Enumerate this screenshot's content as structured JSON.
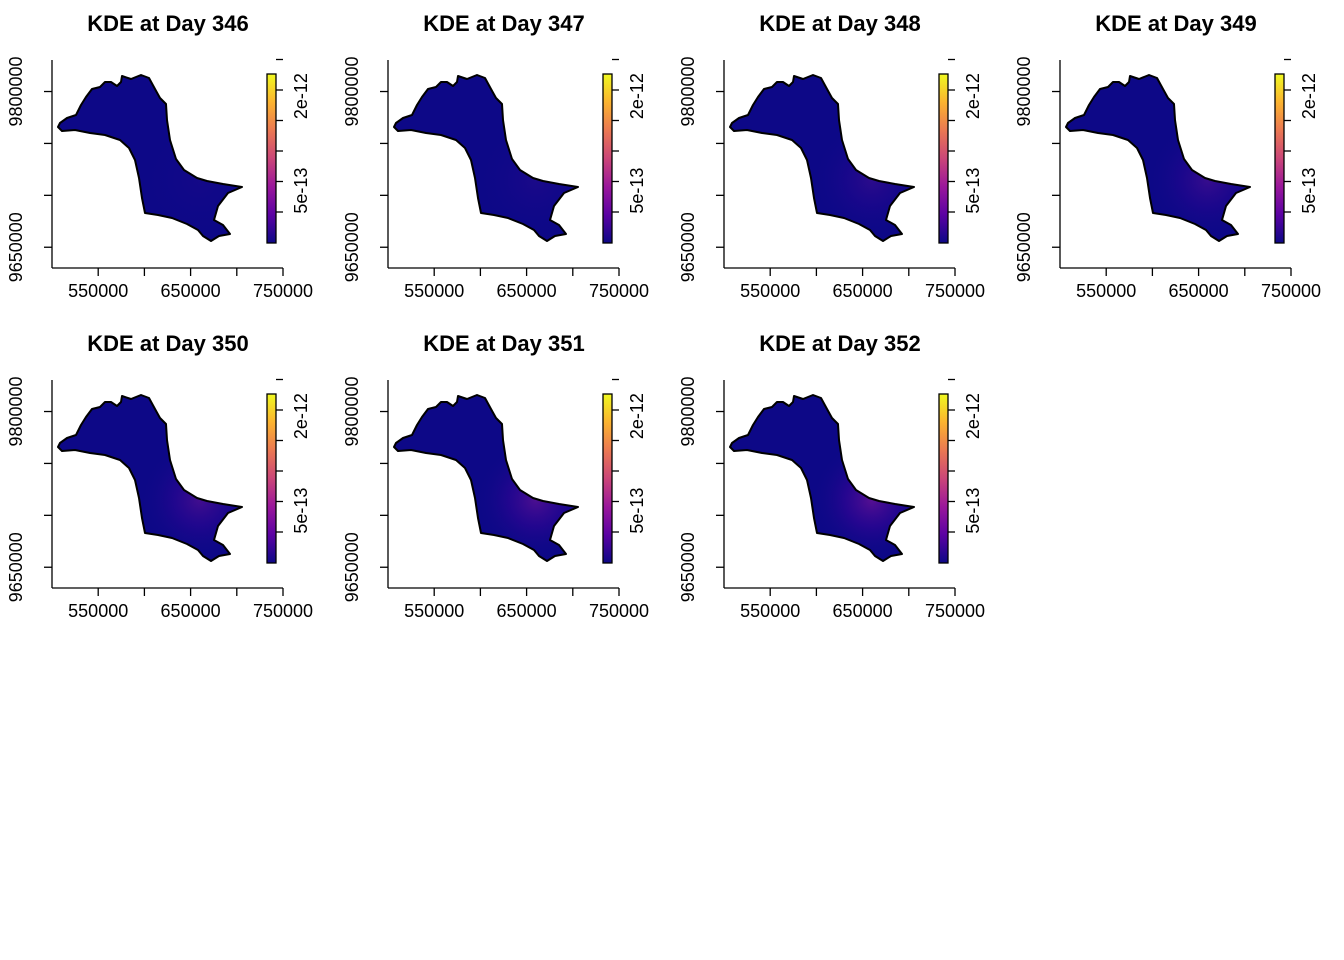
{
  "chart_data": {
    "type": "heatmap",
    "layout": {
      "rows": 2,
      "cols": 4
    },
    "x_ticks": [
      550000,
      650000,
      750000
    ],
    "x_tick_labels": [
      "550000",
      "650000",
      "750000"
    ],
    "y_ticks": [
      9650000,
      9800000
    ],
    "y_tick_labels": [
      "9650000",
      "9800000"
    ],
    "xlim": [
      500000,
      750000
    ],
    "ylim": [
      9630000,
      9840000
    ],
    "legend": {
      "position": "right",
      "tick_labels": [
        "5e-13",
        "2e-12"
      ],
      "colors": [
        "#0d0887",
        "#5b02a3",
        "#9a179b",
        "#cb4678",
        "#eb7852",
        "#fbb32f",
        "#f0f921"
      ]
    },
    "region_fill": "#0d0887",
    "hotspot": {
      "x": 660000,
      "y": 9715000
    },
    "panels": [
      {
        "title": "KDE at Day 346",
        "intensity": 0.05
      },
      {
        "title": "KDE at Day 347",
        "intensity": 0.1
      },
      {
        "title": "KDE at Day 348",
        "intensity": 0.22
      },
      {
        "title": "KDE at Day 349",
        "intensity": 0.3
      },
      {
        "title": "KDE at Day 350",
        "intensity": 0.38
      },
      {
        "title": "KDE at Day 351",
        "intensity": 0.45
      },
      {
        "title": "KDE at Day 352",
        "intensity": 0.52
      }
    ]
  }
}
